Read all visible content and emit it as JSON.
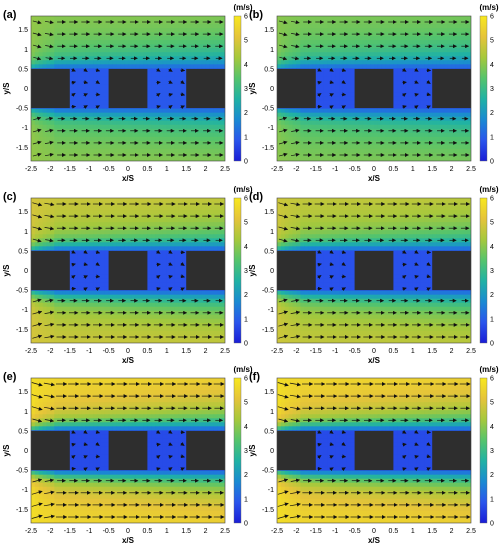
{
  "figure": {
    "colors": {
      "colormap": [
        "#1a1dd6",
        "#2a55ec",
        "#1a8ad2",
        "#20b2a4",
        "#55c46c",
        "#a6c83c",
        "#e5c43a",
        "#f8e81e"
      ],
      "obstacle": "#2e2e2e",
      "arrow": "#111111"
    }
  },
  "chart_data": [
    {
      "panel_label": "(a)",
      "type": "heatmap",
      "xlabel": "x/S",
      "ylabel": "y/S",
      "xlim": [
        -2.5,
        2.5
      ],
      "ylim": [
        -1.85,
        1.85
      ],
      "xticks": [
        "-2.5",
        "-2",
        "-1.5",
        "-1",
        "-0.5",
        "0",
        "0.5",
        "1",
        "1.5",
        "2",
        "2.5"
      ],
      "yticks": [
        "1.5",
        "1",
        "0.5",
        "0",
        "-0.5",
        "-1",
        "-1.5"
      ],
      "colorbar": {
        "label": "(m/s)",
        "range": [
          0,
          6
        ],
        "ticks": [
          "0",
          "1",
          "2",
          "3",
          "4",
          "5",
          "6"
        ]
      },
      "obstacles_xS": [
        [
          -2.5,
          -1.5
        ],
        [
          -0.5,
          0.5
        ],
        [
          1.5,
          2.5
        ]
      ],
      "obstacles_yS": [
        -0.5,
        0.5
      ],
      "free_stream_speed": 3.8,
      "wake_speed": 0.9
    },
    {
      "panel_label": "(b)",
      "type": "heatmap",
      "xlabel": "x/S",
      "ylabel": "y/S",
      "xlim": [
        -2.5,
        2.5
      ],
      "ylim": [
        -1.85,
        1.85
      ],
      "xticks": [
        "-2.5",
        "-2",
        "-1.5",
        "-1",
        "-0.5",
        "0",
        "0.5",
        "1",
        "1.5",
        "2",
        "2.5"
      ],
      "yticks": [
        "1.5",
        "1",
        "0.5",
        "0",
        "-0.5",
        "-1",
        "-1.5"
      ],
      "colorbar": {
        "label": "(m/s)",
        "range": [
          0,
          6
        ],
        "ticks": [
          "0",
          "1",
          "2",
          "3",
          "4",
          "5",
          "6"
        ]
      },
      "obstacles_xS": [
        [
          -2.5,
          -1.5
        ],
        [
          -0.5,
          0.5
        ],
        [
          1.5,
          2.5
        ]
      ],
      "obstacles_yS": [
        -0.5,
        0.5
      ],
      "free_stream_speed": 3.7,
      "wake_speed": 0.8
    },
    {
      "panel_label": "(c)",
      "type": "heatmap",
      "xlabel": "x/S",
      "ylabel": "y/S",
      "xlim": [
        -2.5,
        2.5
      ],
      "ylim": [
        -1.85,
        1.85
      ],
      "xticks": [
        "-2.5",
        "-2",
        "-1.5",
        "-1",
        "-0.5",
        "0",
        "0.5",
        "1",
        "1.5",
        "2",
        "2.5"
      ],
      "yticks": [
        "1.5",
        "1",
        "0.5",
        "0",
        "-0.5",
        "-1",
        "-1.5"
      ],
      "colorbar": {
        "label": "(m/s)",
        "range": [
          0,
          6
        ],
        "ticks": [
          "0",
          "1",
          "2",
          "3",
          "4",
          "5",
          "6"
        ]
      },
      "obstacles_xS": [
        [
          -2.5,
          -1.5
        ],
        [
          -0.5,
          0.5
        ],
        [
          1.5,
          2.5
        ]
      ],
      "obstacles_yS": [
        -0.5,
        0.5
      ],
      "free_stream_speed": 4.6,
      "wake_speed": 0.8
    },
    {
      "panel_label": "(d)",
      "type": "heatmap",
      "xlabel": "x/S",
      "ylabel": "y/S",
      "xlim": [
        -2.5,
        2.5
      ],
      "ylim": [
        -1.85,
        1.85
      ],
      "xticks": [
        "-2.5",
        "-2",
        "-1.5",
        "-1",
        "-0.5",
        "0",
        "0.5",
        "1",
        "1.5",
        "2",
        "2.5"
      ],
      "yticks": [
        "1.5",
        "1",
        "0.5",
        "0",
        "-0.5",
        "-1",
        "-1.5"
      ],
      "colorbar": {
        "label": "(m/s)",
        "range": [
          0,
          6
        ],
        "ticks": [
          "0",
          "1",
          "2",
          "3",
          "4",
          "5",
          "6"
        ]
      },
      "obstacles_xS": [
        [
          -2.5,
          -1.5
        ],
        [
          -0.5,
          0.5
        ],
        [
          1.5,
          2.5
        ]
      ],
      "obstacles_yS": [
        -0.5,
        0.5
      ],
      "free_stream_speed": 4.5,
      "wake_speed": 0.8
    },
    {
      "panel_label": "(e)",
      "type": "heatmap",
      "xlabel": "x/S",
      "ylabel": "y/S",
      "xlim": [
        -2.5,
        2.5
      ],
      "ylim": [
        -1.85,
        1.85
      ],
      "xticks": [
        "-2.5",
        "-2",
        "-1.5",
        "-1",
        "-0.5",
        "0",
        "0.5",
        "1",
        "1.5",
        "2",
        "2.5"
      ],
      "yticks": [
        "1.5",
        "1",
        "0.5",
        "0",
        "-0.5",
        "-1",
        "-1.5"
      ],
      "colorbar": {
        "label": "(m/s)",
        "range": [
          0,
          6
        ],
        "ticks": [
          "0",
          "1",
          "2",
          "3",
          "4",
          "5",
          "6"
        ]
      },
      "obstacles_xS": [
        [
          -2.5,
          -1.5
        ],
        [
          -0.5,
          0.5
        ],
        [
          1.5,
          2.5
        ]
      ],
      "obstacles_yS": [
        -0.5,
        0.5
      ],
      "free_stream_speed": 5.4,
      "wake_speed": 0.7
    },
    {
      "panel_label": "(f)",
      "type": "heatmap",
      "xlabel": "x/S",
      "ylabel": "y/S",
      "xlim": [
        -2.5,
        2.5
      ],
      "ylim": [
        -1.85,
        1.85
      ],
      "xticks": [
        "-2.5",
        "-2",
        "-1.5",
        "-1",
        "-0.5",
        "0",
        "0.5",
        "1",
        "1.5",
        "2",
        "2.5"
      ],
      "yticks": [
        "1.5",
        "1",
        "0.5",
        "0",
        "-0.5",
        "-1",
        "-1.5"
      ],
      "colorbar": {
        "label": "(m/s)",
        "range": [
          0,
          6
        ],
        "ticks": [
          "0",
          "1",
          "2",
          "3",
          "4",
          "5",
          "6"
        ]
      },
      "obstacles_xS": [
        [
          -2.5,
          -1.5
        ],
        [
          -0.5,
          0.5
        ],
        [
          1.5,
          2.5
        ]
      ],
      "obstacles_yS": [
        -0.5,
        0.5
      ],
      "free_stream_speed": 5.4,
      "wake_speed": 0.7
    }
  ]
}
